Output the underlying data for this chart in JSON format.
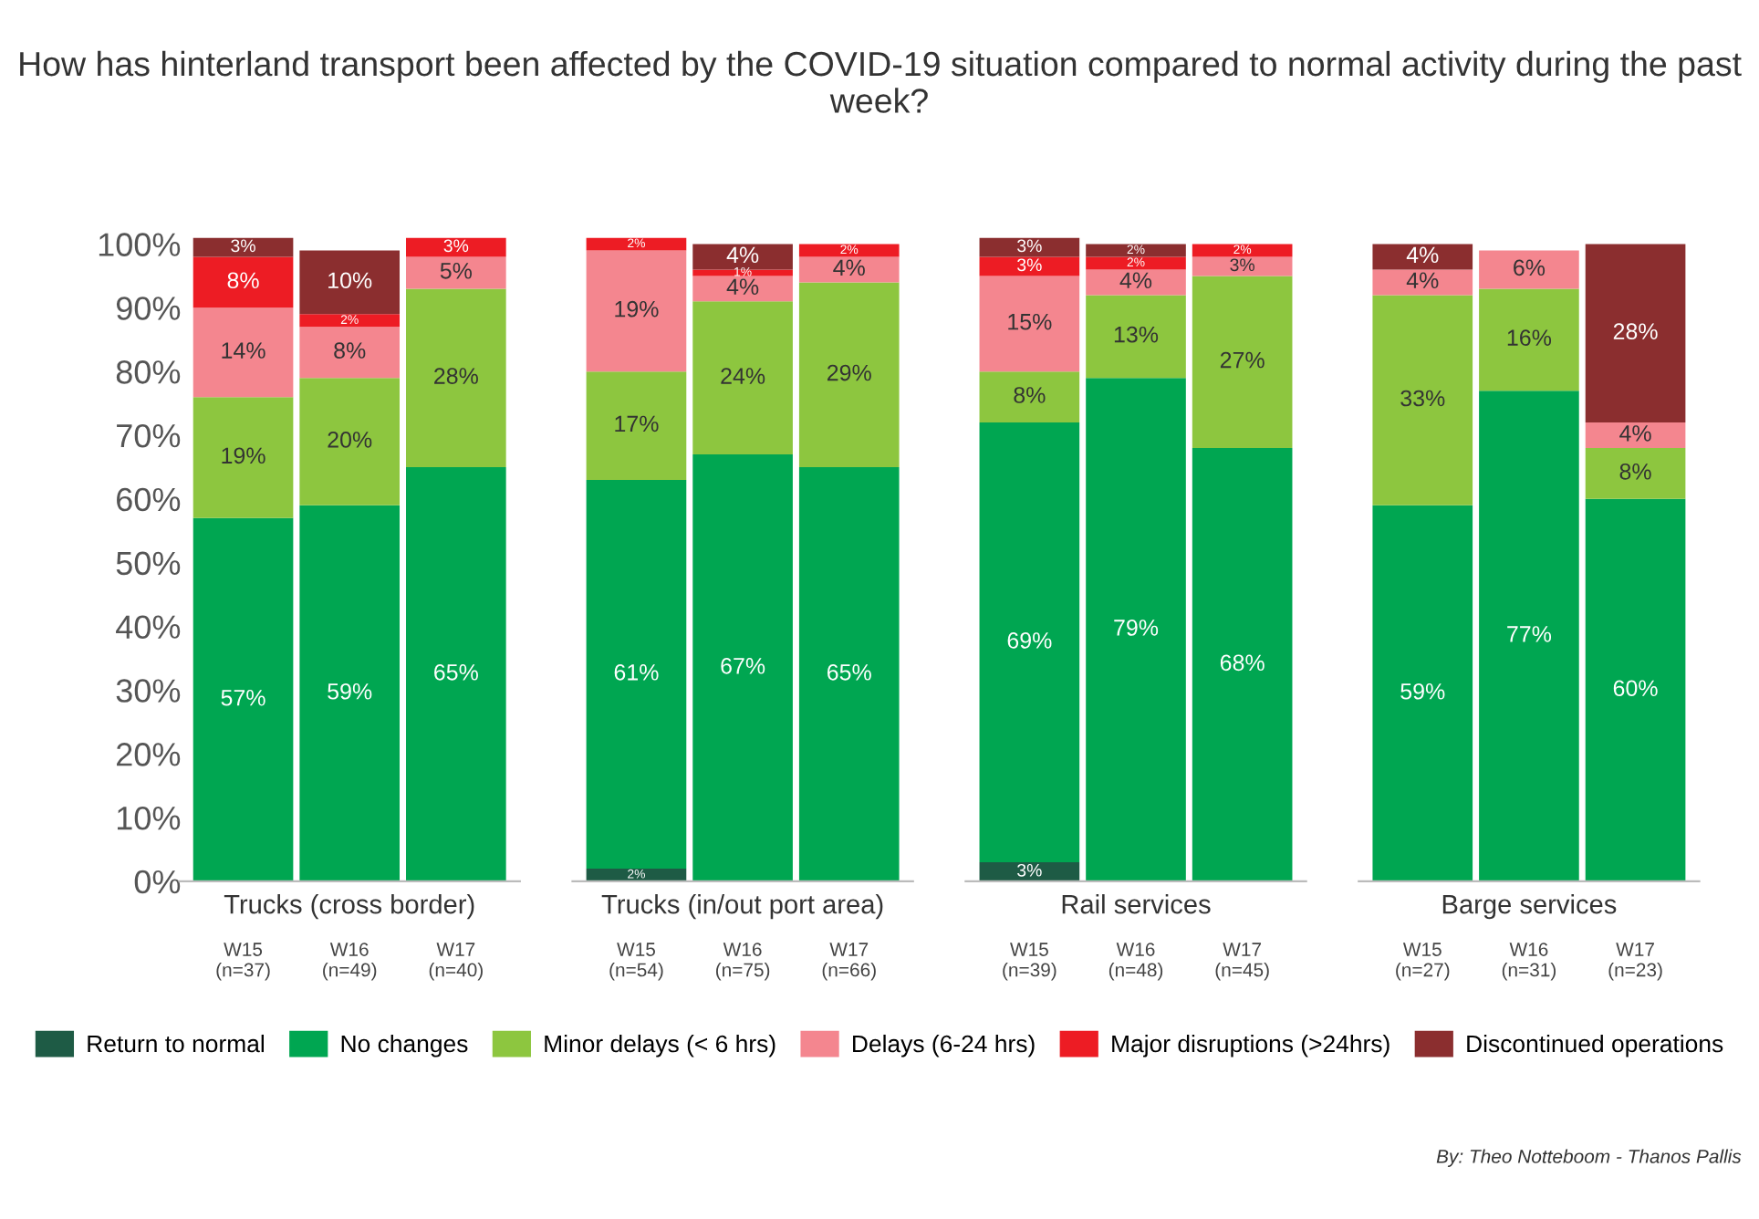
{
  "chart_data": [
    {
      "type": "bar",
      "stacked": true,
      "title": "How has hinterland transport been affected by the COVID-19 situation compared to normal activity during the past week?",
      "xlabel": "Trucks (cross border)",
      "categories": [
        "W15\n(n=37)",
        "W16\n(n=49)",
        "W17\n(n=40)"
      ],
      "ylim": [
        0,
        101
      ],
      "yticks": [
        {
          "value": 0,
          "label": "0%"
        },
        {
          "value": 10,
          "label": "10%"
        },
        {
          "value": 20,
          "label": "20%"
        },
        {
          "value": 30,
          "label": "30%"
        },
        {
          "value": 40,
          "label": "40%"
        },
        {
          "value": 50,
          "label": "50%"
        },
        {
          "value": 60,
          "label": "60%"
        },
        {
          "value": 70,
          "label": "70%"
        },
        {
          "value": 80,
          "label": "80%"
        },
        {
          "value": 90,
          "label": "90%"
        },
        {
          "value": 100,
          "label": "100%"
        }
      ],
      "legend": "bottom",
      "annotations": [
        "By: Theo Notteboom - Thanos Pallis"
      ],
      "series": [
        {
          "name": "Return to normal",
          "color": "#1e5b45",
          "values": [
            null,
            null,
            null
          ],
          "value_labels": [
            null,
            null,
            null
          ]
        },
        {
          "name": "No changes",
          "color": "#00a651",
          "values": [
            57,
            59,
            65
          ],
          "value_labels": [
            "57%",
            "59%",
            "65%"
          ]
        },
        {
          "name": "Minor delays (< 6 hrs)",
          "color": "#8dc63f",
          "values": [
            19,
            20,
            28
          ],
          "value_labels": [
            "19%",
            "20%",
            "28%"
          ]
        },
        {
          "name": "Delays (6-24 hrs)",
          "color": "#f4868f",
          "values": [
            14,
            8,
            5
          ],
          "value_labels": [
            "14%",
            "8%",
            "5%"
          ]
        },
        {
          "name": "Major disruptions (>24hrs)",
          "color": "#ed1c24",
          "values": [
            8,
            2,
            3
          ],
          "value_labels": [
            "8%",
            "2%",
            "3%"
          ]
        },
        {
          "name": "Discontinued operations",
          "color": "#8b2e2f",
          "values": [
            3,
            10,
            null
          ],
          "value_labels": [
            "3%",
            "10%",
            null
          ]
        }
      ]
    },
    {
      "type": "bar",
      "stacked": true,
      "xlabel": "Trucks (in/out port area)",
      "categories": [
        "W15\n(n=54)",
        "W16\n(n=75)",
        "W17\n(n=66)"
      ],
      "ylim": [
        0,
        101
      ],
      "tick_labels": "x",
      "series": [
        {
          "color": "#1e5b45",
          "values": [
            2,
            null,
            null
          ],
          "value_labels": [
            "2%",
            null,
            null
          ]
        },
        {
          "color": "#00a651",
          "values": [
            61,
            67,
            65
          ],
          "value_labels": [
            "61%",
            "67%",
            "65%"
          ]
        },
        {
          "color": "#8dc63f",
          "values": [
            17,
            24,
            29
          ],
          "value_labels": [
            "17%",
            "24%",
            "29%"
          ]
        },
        {
          "color": "#f4868f",
          "values": [
            19,
            4,
            4
          ],
          "value_labels": [
            "19%",
            "4%",
            "4%"
          ]
        },
        {
          "color": "#ed1c24",
          "values": [
            2,
            1,
            2
          ],
          "value_labels": [
            "2%",
            "1%",
            "2%"
          ]
        },
        {
          "color": "#8b2e2f",
          "values": [
            null,
            4,
            null
          ],
          "value_labels": [
            null,
            "4%",
            null
          ]
        }
      ]
    },
    {
      "type": "bar",
      "stacked": true,
      "xlabel": "Rail services",
      "categories": [
        "W15\n(n=39)",
        "W16\n(n=48)",
        "W17\n(n=45)"
      ],
      "ylim": [
        0,
        101
      ],
      "tick_labels": "x",
      "series": [
        {
          "color": "#1e5b45",
          "values": [
            3,
            null,
            null
          ],
          "value_labels": [
            "3%",
            null,
            null
          ]
        },
        {
          "color": "#00a651",
          "values": [
            69,
            79,
            68
          ],
          "value_labels": [
            "69%",
            "79%",
            "68%"
          ]
        },
        {
          "color": "#8dc63f",
          "values": [
            8,
            13,
            27
          ],
          "value_labels": [
            "8%",
            "13%",
            "27%"
          ]
        },
        {
          "color": "#f4868f",
          "values": [
            15,
            4,
            3
          ],
          "value_labels": [
            "15%",
            "4%",
            "3%"
          ]
        },
        {
          "color": "#ed1c24",
          "values": [
            3,
            2,
            2
          ],
          "value_labels": [
            "3%",
            "2%",
            "2%"
          ]
        },
        {
          "color": "#8b2e2f",
          "values": [
            3,
            2,
            null
          ],
          "value_labels": [
            "3%",
            "2%",
            null
          ]
        }
      ]
    },
    {
      "type": "bar",
      "stacked": true,
      "xlabel": "Barge services",
      "categories": [
        "W15\n(n=27)",
        "W16\n(n=31)",
        "W17\n(n=23)"
      ],
      "ylim": [
        0,
        101
      ],
      "tick_labels": "x",
      "series": [
        {
          "color": "#1e5b45",
          "values": [
            null,
            null,
            null
          ],
          "value_labels": [
            null,
            null,
            null
          ]
        },
        {
          "color": "#00a651",
          "values": [
            59,
            77,
            60
          ],
          "value_labels": [
            "59%",
            "77%",
            "60%"
          ]
        },
        {
          "color": "#8dc63f",
          "values": [
            33,
            16,
            8
          ],
          "value_labels": [
            "33%",
            "16%",
            "8%"
          ]
        },
        {
          "color": "#f4868f",
          "values": [
            4,
            6,
            4
          ],
          "value_labels": [
            "4%",
            "6%",
            "4%"
          ]
        },
        {
          "color": "#ed1c24",
          "values": [
            null,
            null,
            null
          ],
          "value_labels": [
            null,
            null,
            null
          ]
        },
        {
          "color": "#8b2e2f",
          "values": [
            4,
            null,
            28
          ],
          "value_labels": [
            "4%",
            null,
            "28%"
          ]
        }
      ]
    }
  ]
}
